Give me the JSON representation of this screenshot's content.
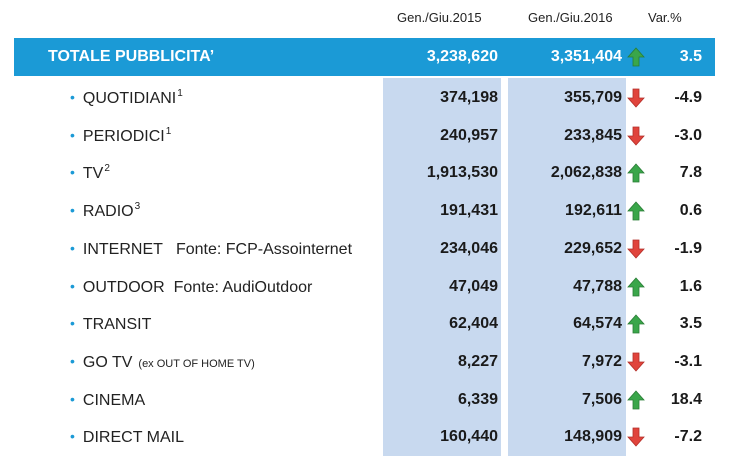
{
  "headers": {
    "col2015": "Gen./Giu.2015",
    "col2016": "Gen./Giu.2016",
    "var": "Var.%"
  },
  "total": {
    "label": "TOTALE PUBBLICITA’",
    "v2015": "3,238,620",
    "v2016": "3,351,404",
    "var": "3.5",
    "trend": "up"
  },
  "rows": [
    {
      "label": "QUOTIDIANI",
      "sup": "1",
      "v2015": "374,198",
      "v2016": "355,709",
      "var": "-4.9",
      "trend": "down"
    },
    {
      "label": "PERIODICI",
      "sup": "1",
      "v2015": "240,957",
      "v2016": "233,845",
      "var": "-3.0",
      "trend": "down"
    },
    {
      "label": "TV",
      "sup": "2",
      "v2015": "1,913,530",
      "v2016": "2,062,838",
      "var": "7.8",
      "trend": "up"
    },
    {
      "label": "RADIO",
      "sup": "3",
      "v2015": "191,431",
      "v2016": "192,611",
      "var": "0.6",
      "trend": "up"
    },
    {
      "label": "INTERNET   Fonte: FCP-Assointernet",
      "v2015": "234,046",
      "v2016": "229,652",
      "var": "-1.9",
      "trend": "down"
    },
    {
      "label": "OUTDOOR  Fonte: AudiOutdoor",
      "v2015": "47,049",
      "v2016": "47,788",
      "var": "1.6",
      "trend": "up"
    },
    {
      "label": "TRANSIT",
      "v2015": "62,404",
      "v2016": "64,574",
      "var": "3.5",
      "trend": "up"
    },
    {
      "label": "GO TV",
      "note": "(ex OUT OF HOME TV)",
      "v2015": "8,227",
      "v2016": "7,972",
      "var": "-3.1",
      "trend": "down"
    },
    {
      "label": "CINEMA",
      "v2015": "6,339",
      "v2016": "7,506",
      "var": "18.4",
      "trend": "up"
    },
    {
      "label": "DIRECT MAIL",
      "v2015": "160,440",
      "v2016": "148,909",
      "var": "-7.2",
      "trend": "down"
    }
  ],
  "colors": {
    "header_bar": "#1b9ad6",
    "column_bg": "#c8d9ef",
    "up_arrow": "#3aa64a",
    "down_arrow": "#e0443c"
  },
  "icons": {
    "up": "arrow-up-icon",
    "down": "arrow-down-icon",
    "bullet": "bullet-icon"
  }
}
